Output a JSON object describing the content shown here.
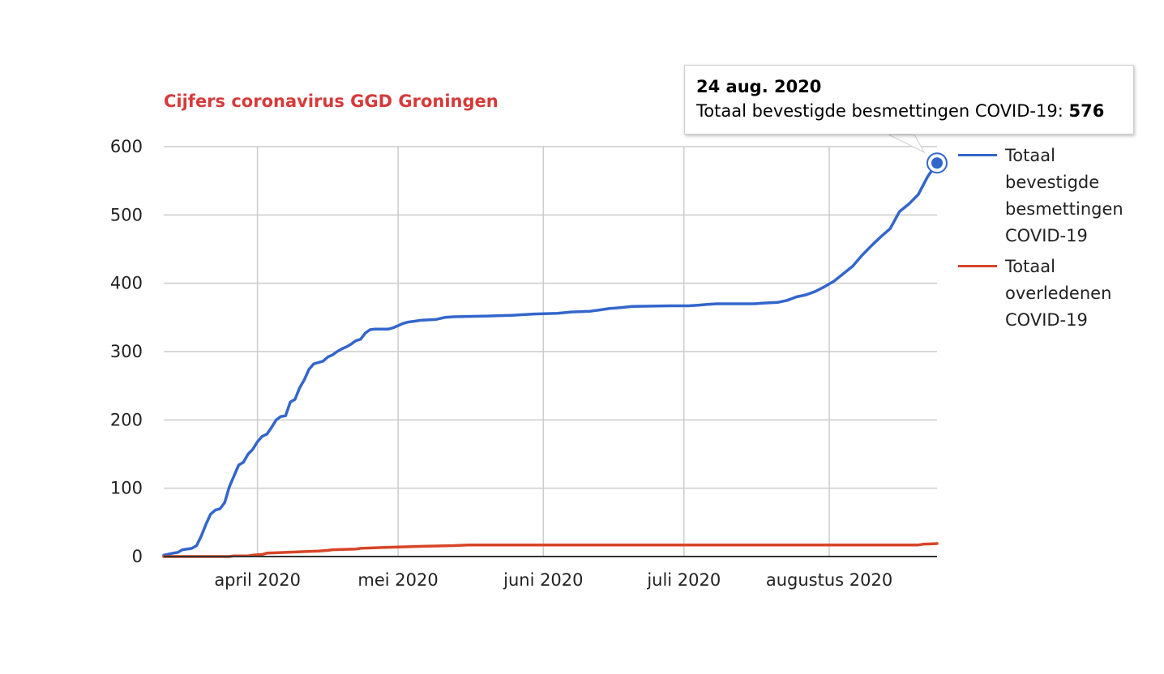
{
  "chart_data": {
    "type": "line",
    "title": "Cijfers coronavirus GGD Groningen",
    "xlabel": "",
    "ylabel": "",
    "ylim": [
      0,
      600
    ],
    "yticks": [
      "0",
      "100",
      "200",
      "300",
      "400",
      "500",
      "600"
    ],
    "xticks": [
      {
        "label": "april 2020",
        "x": "2020-04-01"
      },
      {
        "label": "mei 2020",
        "x": "2020-05-01"
      },
      {
        "label": "juni 2020",
        "x": "2020-06-01"
      },
      {
        "label": "juli 2020",
        "x": "2020-07-01"
      },
      {
        "label": "augustus 2020",
        "x": "2020-08-01"
      }
    ],
    "xlim": [
      "2020-03-12",
      "2020-08-24"
    ],
    "grid": true,
    "legend_position": "right",
    "series": [
      {
        "name": "Totaal bevestigde besmettingen COVID-19",
        "color": "#3366cc",
        "points": [
          [
            "2020-03-12",
            2
          ],
          [
            "2020-03-14",
            5
          ],
          [
            "2020-03-15",
            6
          ],
          [
            "2020-03-16",
            10
          ],
          [
            "2020-03-18",
            12
          ],
          [
            "2020-03-19",
            16
          ],
          [
            "2020-03-20",
            30
          ],
          [
            "2020-03-21",
            47
          ],
          [
            "2020-03-22",
            62
          ],
          [
            "2020-03-23",
            68
          ],
          [
            "2020-03-24",
            70
          ],
          [
            "2020-03-25",
            79
          ],
          [
            "2020-03-26",
            102
          ],
          [
            "2020-03-27",
            118
          ],
          [
            "2020-03-28",
            134
          ],
          [
            "2020-03-29",
            138
          ],
          [
            "2020-03-30",
            150
          ],
          [
            "2020-03-31",
            157
          ],
          [
            "2020-04-01",
            168
          ],
          [
            "2020-04-02",
            176
          ],
          [
            "2020-04-03",
            179
          ],
          [
            "2020-04-04",
            189
          ],
          [
            "2020-04-05",
            200
          ],
          [
            "2020-04-06",
            205
          ],
          [
            "2020-04-07",
            206
          ],
          [
            "2020-04-08",
            226
          ],
          [
            "2020-04-09",
            230
          ],
          [
            "2020-04-10",
            247
          ],
          [
            "2020-04-11",
            259
          ],
          [
            "2020-04-12",
            274
          ],
          [
            "2020-04-13",
            282
          ],
          [
            "2020-04-14",
            284
          ],
          [
            "2020-04-15",
            286
          ],
          [
            "2020-04-16",
            292
          ],
          [
            "2020-04-17",
            295
          ],
          [
            "2020-04-18",
            300
          ],
          [
            "2020-04-19",
            304
          ],
          [
            "2020-04-20",
            307
          ],
          [
            "2020-04-21",
            311
          ],
          [
            "2020-04-22",
            316
          ],
          [
            "2020-04-23",
            318
          ],
          [
            "2020-04-24",
            327
          ],
          [
            "2020-04-25",
            332
          ],
          [
            "2020-04-26",
            333
          ],
          [
            "2020-04-29",
            333
          ],
          [
            "2020-04-30",
            335
          ],
          [
            "2020-05-01",
            338
          ],
          [
            "2020-05-02",
            341
          ],
          [
            "2020-05-03",
            343
          ],
          [
            "2020-05-05",
            345
          ],
          [
            "2020-05-06",
            346
          ],
          [
            "2020-05-09",
            347
          ],
          [
            "2020-05-11",
            350
          ],
          [
            "2020-05-13",
            351
          ],
          [
            "2020-05-20",
            352
          ],
          [
            "2020-05-25",
            353
          ],
          [
            "2020-05-30",
            355
          ],
          [
            "2020-06-04",
            356
          ],
          [
            "2020-06-07",
            358
          ],
          [
            "2020-06-11",
            359
          ],
          [
            "2020-06-13",
            361
          ],
          [
            "2020-06-15",
            363
          ],
          [
            "2020-06-17",
            364
          ],
          [
            "2020-06-20",
            366
          ],
          [
            "2020-06-28",
            367
          ],
          [
            "2020-07-02",
            367
          ],
          [
            "2020-07-04",
            368
          ],
          [
            "2020-07-06",
            369
          ],
          [
            "2020-07-08",
            370
          ],
          [
            "2020-07-16",
            370
          ],
          [
            "2020-07-18",
            371
          ],
          [
            "2020-07-21",
            372
          ],
          [
            "2020-07-23",
            375
          ],
          [
            "2020-07-25",
            380
          ],
          [
            "2020-07-27",
            383
          ],
          [
            "2020-07-29",
            388
          ],
          [
            "2020-07-31",
            395
          ],
          [
            "2020-08-02",
            403
          ],
          [
            "2020-08-04",
            414
          ],
          [
            "2020-08-06",
            425
          ],
          [
            "2020-08-08",
            441
          ],
          [
            "2020-08-10",
            455
          ],
          [
            "2020-08-12",
            468
          ],
          [
            "2020-08-14",
            480
          ],
          [
            "2020-08-16",
            505
          ],
          [
            "2020-08-18",
            516
          ],
          [
            "2020-08-20",
            530
          ],
          [
            "2020-08-22",
            556
          ],
          [
            "2020-08-24",
            576
          ]
        ]
      },
      {
        "name": "Totaal overledenen COVID-19",
        "color": "#d84527",
        "points": [
          [
            "2020-03-12",
            0
          ],
          [
            "2020-03-26",
            0
          ],
          [
            "2020-03-27",
            1
          ],
          [
            "2020-03-30",
            1
          ],
          [
            "2020-03-31",
            2
          ],
          [
            "2020-04-02",
            3
          ],
          [
            "2020-04-03",
            5
          ],
          [
            "2020-04-07",
            6
          ],
          [
            "2020-04-10",
            7
          ],
          [
            "2020-04-14",
            8
          ],
          [
            "2020-04-16",
            9
          ],
          [
            "2020-04-17",
            10
          ],
          [
            "2020-04-22",
            11
          ],
          [
            "2020-04-23",
            12
          ],
          [
            "2020-04-27",
            13
          ],
          [
            "2020-05-01",
            14
          ],
          [
            "2020-05-06",
            15
          ],
          [
            "2020-05-13",
            16
          ],
          [
            "2020-05-16",
            17
          ],
          [
            "2020-08-20",
            17
          ],
          [
            "2020-08-21",
            18
          ],
          [
            "2020-08-24",
            19
          ]
        ]
      }
    ],
    "tooltip": {
      "date": "24 aug. 2020",
      "label": "Totaal bevestigde besmettingen COVID-19:",
      "value": "576"
    }
  }
}
